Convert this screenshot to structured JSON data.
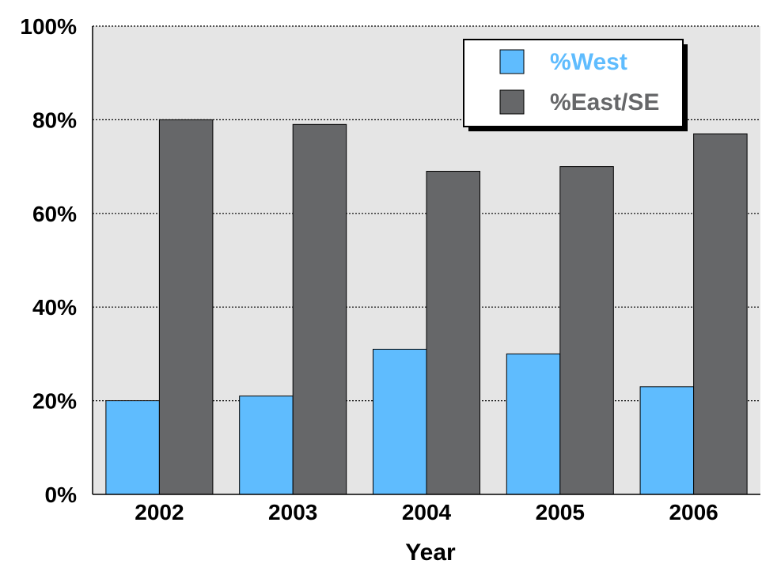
{
  "chart_data": {
    "type": "bar",
    "categories": [
      "2002",
      "2003",
      "2004",
      "2005",
      "2006"
    ],
    "series": [
      {
        "name": "%West",
        "values": [
          20,
          21,
          31,
          30,
          23
        ],
        "color": "#5fbcfe"
      },
      {
        "name": "%East/SE",
        "values": [
          80,
          79,
          69,
          70,
          77
        ],
        "color": "#666769"
      }
    ],
    "xlabel": "Year",
    "ylabel": "",
    "ylim": [
      0,
      100
    ],
    "yticks": [
      0,
      20,
      40,
      60,
      80,
      100
    ],
    "ytick_labels": [
      "0%",
      "20%",
      "40%",
      "60%",
      "80%",
      "100%"
    ],
    "grid": true,
    "legend_position": "top-right",
    "plot_background": "#e5e5e5"
  }
}
